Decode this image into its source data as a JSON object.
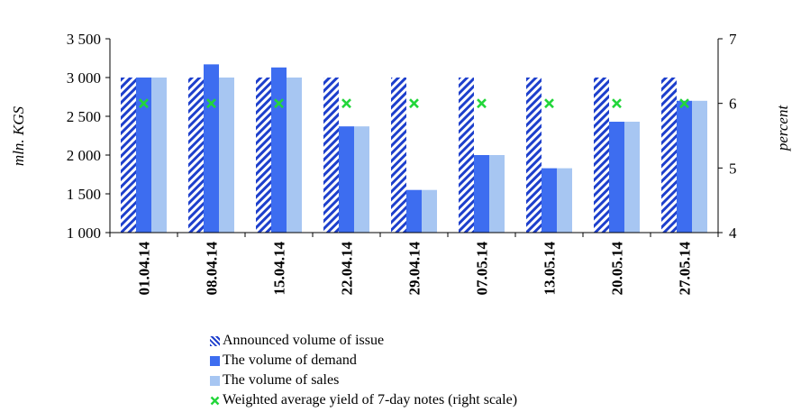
{
  "chart_data": {
    "type": "bar",
    "categories": [
      "01.04.14",
      "08.04.14",
      "15.04.14",
      "22.04.14",
      "29.04.14",
      "07.05.14",
      "13.05.14",
      "20.05.14",
      "27.05.14"
    ],
    "series": [
      {
        "name": "Announced volume of issue",
        "axis": "left",
        "kind": "bar",
        "pattern": "hatched",
        "color": "#1d3fcc",
        "values": [
          3000,
          3000,
          3000,
          3000,
          3000,
          3000,
          3000,
          3000,
          3000
        ]
      },
      {
        "name": "The volume of demand",
        "axis": "left",
        "kind": "bar",
        "color": "#3d6df0",
        "values": [
          3000,
          3170,
          3130,
          2370,
          1550,
          2000,
          1830,
          2430,
          2700
        ]
      },
      {
        "name": "The volume of sales",
        "axis": "left",
        "kind": "bar",
        "color": "#a7c6f2",
        "values": [
          3000,
          3000,
          3000,
          2370,
          1550,
          2000,
          1830,
          2430,
          2700
        ]
      },
      {
        "name": "Weighted average yield of 7-day notes (right scale)",
        "axis": "right",
        "kind": "marker",
        "marker": "x",
        "color": "#22d63a",
        "values": [
          6.0,
          6.0,
          6.0,
          6.0,
          6.0,
          6.0,
          6.0,
          6.0,
          6.0
        ]
      }
    ],
    "ylabel": "mln. KGS",
    "y2label": "percent",
    "ylim": [
      1000,
      3500
    ],
    "yticks": [
      1000,
      1500,
      2000,
      2500,
      3000,
      3500
    ],
    "ytick_labels": [
      "1 000",
      "1 500",
      "2 000",
      "2 500",
      "3 000",
      "3 500"
    ],
    "y2lim": [
      4,
      7
    ],
    "y2ticks": [
      4,
      5,
      6,
      7
    ],
    "y2tick_labels": [
      "4",
      "5",
      "6",
      "7"
    ],
    "grid": false,
    "legend_position": "bottom"
  }
}
